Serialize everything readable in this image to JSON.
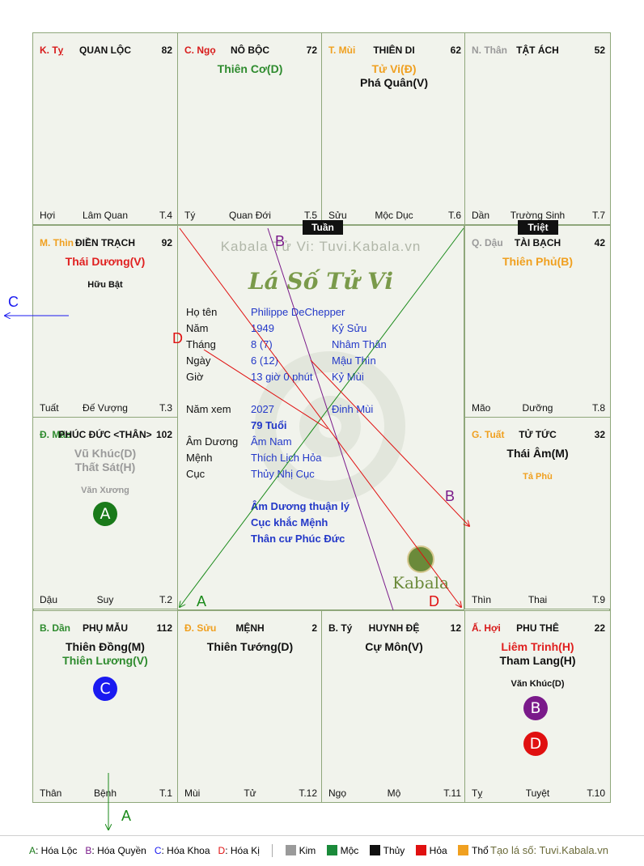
{
  "palaces": [
    {
      "key": "ty",
      "stem_branch": "K. Tỵ",
      "stem_color": "#d81b1b",
      "title": "QUAN LỘC",
      "num": "82",
      "stars": [],
      "minor": [],
      "foot": [
        "Hợi",
        "Lâm Quan",
        "T.4"
      ]
    },
    {
      "key": "ngo",
      "stem_branch": "C. Ngọ",
      "stem_color": "#d81b1b",
      "title": "NÔ BỘC",
      "num": "72",
      "stars": [
        {
          "t": "Thiên Cơ(D)",
          "c": "#2e8b2e"
        }
      ],
      "minor": [],
      "foot": [
        "Tý",
        "Quan Đới",
        "T.5"
      ]
    },
    {
      "key": "mui",
      "stem_branch": "T. Mùi",
      "stem_color": "#f0a020",
      "title": "THIÊN DI",
      "num": "62",
      "stars": [
        {
          "t": "Tử Vi(Đ)",
          "c": "#f0a020"
        },
        {
          "t": "Phá Quân(V)",
          "c": "#111111"
        }
      ],
      "minor": [],
      "foot": [
        "Sửu",
        "Mộc Dục",
        "T.6"
      ]
    },
    {
      "key": "than",
      "stem_branch": "N. Thân",
      "stem_color": "#9a9a9a",
      "title": "TẬT ÁCH",
      "num": "52",
      "stars": [],
      "minor": [],
      "foot": [
        "Dần",
        "Trường Sinh",
        "T.7"
      ]
    },
    {
      "key": "thin",
      "stem_branch": "M. Thìn",
      "stem_color": "#f0a020",
      "title": "ĐIỀN TRẠCH",
      "num": "92",
      "stars": [
        {
          "t": "Thái Dương(V)",
          "c": "#e02020"
        }
      ],
      "minor": [
        {
          "t": "Hữu Bật",
          "c": "#111111"
        }
      ],
      "foot": [
        "Tuất",
        "Đế Vượng",
        "T.3"
      ]
    },
    {
      "key": "dau",
      "stem_branch": "Q. Dậu",
      "stem_color": "#9a9a9a",
      "title": "TÀI BẠCH",
      "num": "42",
      "stars": [
        {
          "t": "Thiên Phủ(B)",
          "c": "#f0a020"
        }
      ],
      "minor": [],
      "foot": [
        "Mão",
        "Dưỡng",
        "T.8"
      ]
    },
    {
      "key": "mao",
      "stem_branch": "Đ. Mão",
      "stem_color": "#2e8b2e",
      "title": "PHÚC ĐỨC <THÂN>",
      "num": "102",
      "stars": [
        {
          "t": "Vũ Khúc(D)",
          "c": "#9a9a9a"
        },
        {
          "t": "Thất Sát(H)",
          "c": "#9a9a9a"
        }
      ],
      "minor": [
        {
          "t": "Văn Xương",
          "c": "#9a9a9a"
        }
      ],
      "foot": [
        "Dậu",
        "Suy",
        "T.2"
      ]
    },
    {
      "key": "tuat",
      "stem_branch": "G. Tuất",
      "stem_color": "#f0a020",
      "title": "TỬ TỨC",
      "num": "32",
      "stars": [
        {
          "t": "Thái Âm(M)",
          "c": "#111111"
        }
      ],
      "minor": [
        {
          "t": "Tả Phù",
          "c": "#f0a020"
        }
      ],
      "foot": [
        "Thìn",
        "Thai",
        "T.9"
      ]
    },
    {
      "key": "dan",
      "stem_branch": "B. Dần",
      "stem_color": "#2e8b2e",
      "title": "PHỤ MẪU",
      "num": "112",
      "stars": [
        {
          "t": "Thiên Đồng(M)",
          "c": "#111111"
        },
        {
          "t": "Thiên Lương(V)",
          "c": "#2e8b2e"
        }
      ],
      "minor": [],
      "foot": [
        "Thân",
        "Bệnh",
        "T.1"
      ]
    },
    {
      "key": "suu",
      "stem_branch": "Đ. Sửu",
      "stem_color": "#f0a020",
      "title": "MỆNH",
      "num": "2",
      "stars": [
        {
          "t": "Thiên Tướng(D)",
          "c": "#111111"
        }
      ],
      "minor": [],
      "foot": [
        "Mùi",
        "Tử",
        "T.12"
      ]
    },
    {
      "key": "ty2",
      "stem_branch": "B. Tý",
      "stem_color": "#111111",
      "title": "HUYNH ĐỆ",
      "num": "12",
      "stars": [
        {
          "t": "Cự Môn(V)",
          "c": "#111111"
        }
      ],
      "minor": [],
      "foot": [
        "Ngọ",
        "Mộ",
        "T.11"
      ]
    },
    {
      "key": "hoi",
      "stem_branch": "Ấ. Hợi",
      "stem_color": "#d81b1b",
      "title": "PHU THÊ",
      "num": "22",
      "stars": [
        {
          "t": "Liêm Trinh(H)",
          "c": "#e02020"
        },
        {
          "t": "Tham Lang(H)",
          "c": "#111111"
        }
      ],
      "minor": [
        {
          "t": "Văn Khúc(D)",
          "c": "#111111"
        }
      ],
      "foot": [
        "Tỵ",
        "Tuyệt",
        "T.10"
      ]
    }
  ],
  "badges": [
    {
      "label": "A",
      "color": "#1a7a1a"
    },
    {
      "label": "C",
      "color": "#1a1af0"
    },
    {
      "label": "B",
      "color": "#7a1a8a"
    },
    {
      "label": "D",
      "color": "#e01010"
    }
  ],
  "tags": {
    "tuan": "Tuần",
    "triet": "Triệt"
  },
  "watermark": "Kabala Tử Vi: Tuvi.Kabala.vn",
  "logo_title": "Lá Số Tử Vi",
  "kabala_logo": "Kabala",
  "info": {
    "ho_ten": {
      "k": "Họ tên",
      "v": "Philippe DeChepper"
    },
    "nam": {
      "k": "Năm",
      "v": "1949",
      "v2": "Kỷ Sửu"
    },
    "thang": {
      "k": "Tháng",
      "v": "8  (7)",
      "v2": "Nhâm Thân"
    },
    "ngay": {
      "k": "Ngày",
      "v": "6  (12)",
      "v2": "Mậu Thìn"
    },
    "gio": {
      "k": "Giờ",
      "v": "13 giờ 0 phút",
      "v2": "Kỷ Mùi"
    },
    "nam_xem": {
      "k": "Năm xem",
      "v": "2027",
      "v2": "Đinh Mùi"
    },
    "tuoi": "79 Tuổi",
    "am_duong": {
      "k": "Âm Dương",
      "v": "Âm Nam"
    },
    "menh": {
      "k": "Mệnh",
      "v": "Thích Lịch Hỏa"
    },
    "cuc": {
      "k": "Cục",
      "v": "Thủy Nhị Cục"
    },
    "notes": [
      "Âm Dương thuận lý",
      "Cục khắc Mệnh",
      "Thân cư Phúc Đức"
    ]
  },
  "arrow_labels": {
    "a": "A",
    "b": "B",
    "c": "C",
    "d": "D"
  },
  "legend": {
    "items": [
      {
        "k": "A",
        "t": ": Hóa Lộc",
        "c": "#1a7a1a"
      },
      {
        "k": "B",
        "t": ": Hóa Quyền",
        "c": "#7a1a8a"
      },
      {
        "k": "C",
        "t": ": Hóa Khoa",
        "c": "#1a1af0"
      },
      {
        "k": "D",
        "t": ": Hóa Kị",
        "c": "#e01010"
      }
    ],
    "elements": [
      {
        "t": "Kim",
        "c": "#9a9a9a"
      },
      {
        "t": "Mộc",
        "c": "#1a8a3a"
      },
      {
        "t": "Thủy",
        "c": "#111111"
      },
      {
        "t": "Hỏa",
        "c": "#e01010"
      },
      {
        "t": "Thổ",
        "c": "#f0a020"
      }
    ],
    "credit": "Tạo lá số: Tuvi.Kabala.vn"
  }
}
